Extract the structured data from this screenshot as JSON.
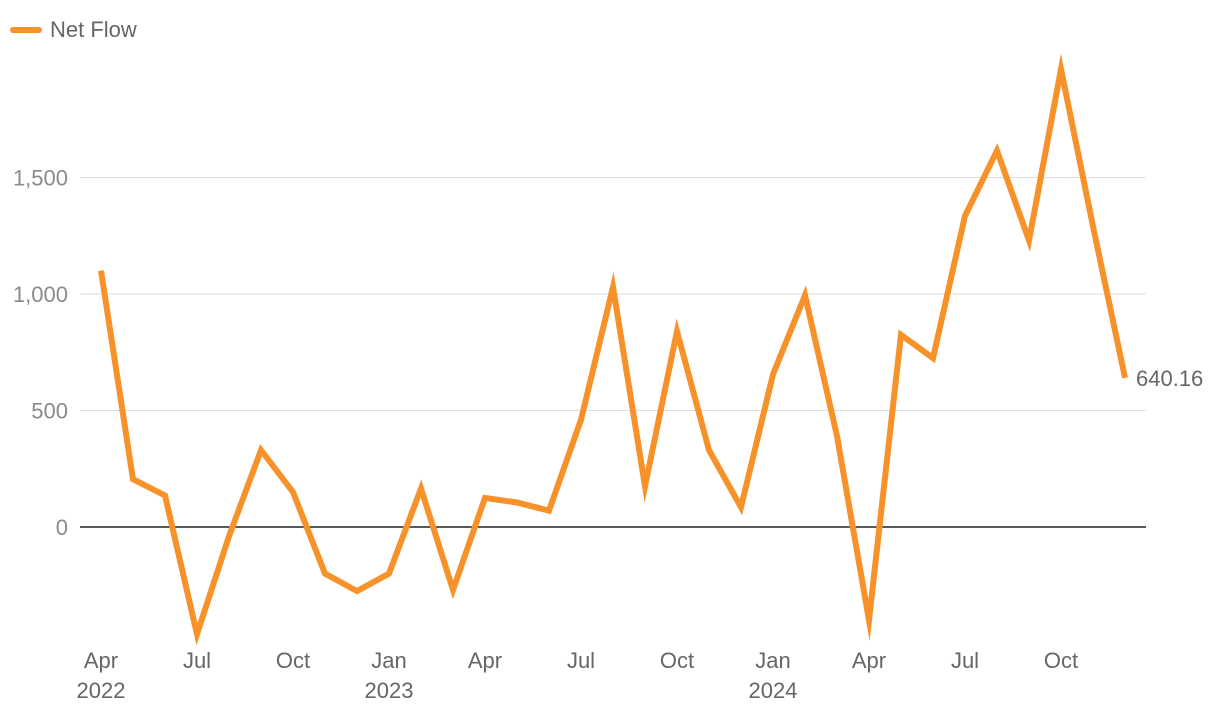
{
  "chart_data": {
    "type": "line",
    "title": "",
    "xlabel": "",
    "ylabel": "",
    "ylim": [
      -500,
      2000
    ],
    "yticks": [
      0,
      500,
      1000,
      1500
    ],
    "ytick_labels": [
      "0",
      "500",
      "1,000",
      "1,500"
    ],
    "grid": true,
    "legend": "top-left",
    "xtick_labels": [
      {
        "line1": "Apr",
        "line2": "2022",
        "index": 0
      },
      {
        "line1": "Jul",
        "line2": "",
        "index": 3
      },
      {
        "line1": "Oct",
        "line2": "",
        "index": 6
      },
      {
        "line1": "Jan",
        "line2": "2023",
        "index": 9
      },
      {
        "line1": "Apr",
        "line2": "",
        "index": 12
      },
      {
        "line1": "Jul",
        "line2": "",
        "index": 15
      },
      {
        "line1": "Oct",
        "line2": "",
        "index": 18
      },
      {
        "line1": "Jan",
        "line2": "2024",
        "index": 21
      },
      {
        "line1": "Apr",
        "line2": "",
        "index": 24
      },
      {
        "line1": "Jul",
        "line2": "",
        "index": 27
      },
      {
        "line1": "Oct",
        "line2": "",
        "index": 30
      }
    ],
    "x": [
      "2022-04",
      "2022-05",
      "2022-06",
      "2022-07",
      "2022-08",
      "2022-09",
      "2022-10",
      "2022-11",
      "2022-12",
      "2023-01",
      "2023-02",
      "2023-03",
      "2023-04",
      "2023-05",
      "2023-06",
      "2023-07",
      "2023-08",
      "2023-09",
      "2023-10",
      "2023-11",
      "2023-12",
      "2024-01",
      "2024-02",
      "2024-03",
      "2024-04",
      "2024-05",
      "2024-06",
      "2024-07",
      "2024-08",
      "2024-09",
      "2024-10",
      "2024-11",
      "2024-12"
    ],
    "series": [
      {
        "name": "Net Flow",
        "color": "#f7922a",
        "values": [
          1100,
          205,
          135,
          -460,
          -40,
          330,
          150,
          -200,
          -275,
          -200,
          165,
          -270,
          125,
          105,
          70,
          460,
          1030,
          175,
          840,
          330,
          85,
          655,
          995,
          390,
          -400,
          825,
          725,
          1335,
          1615,
          1230,
          1965,
          1290,
          640.16
        ],
        "end_label": "640.16"
      }
    ]
  }
}
